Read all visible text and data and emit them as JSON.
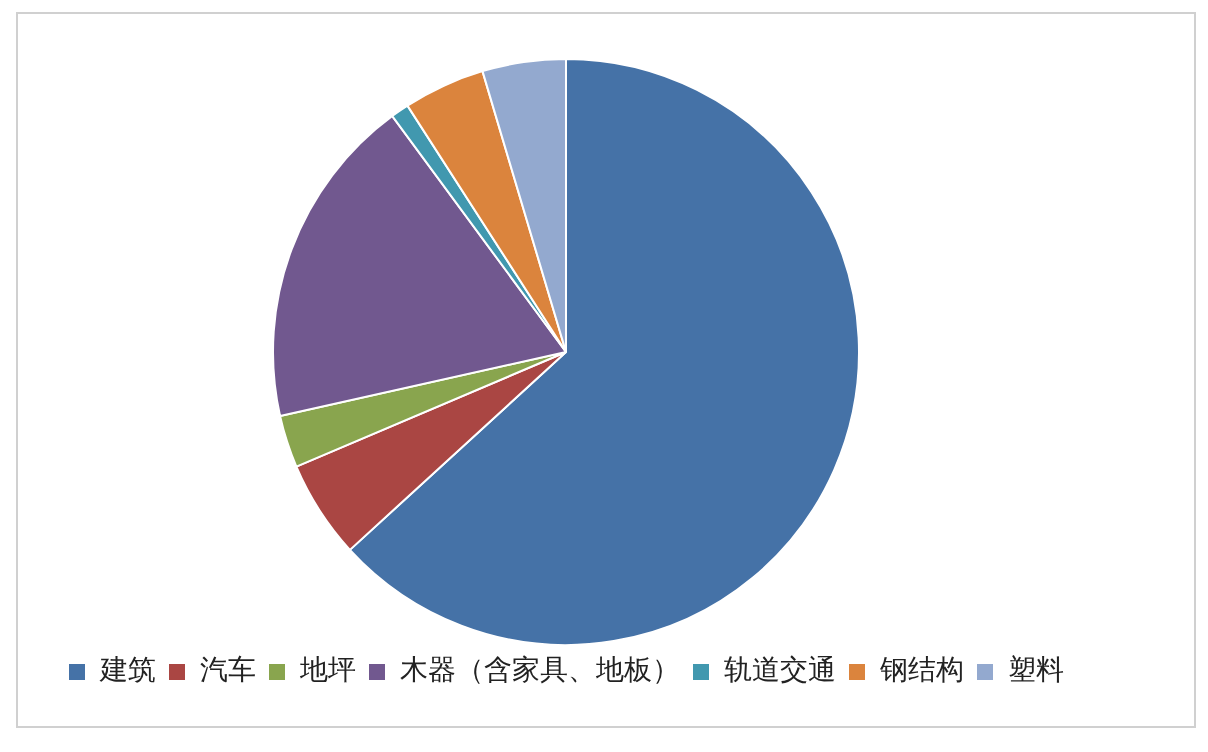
{
  "chart_data": {
    "type": "pie",
    "categories": [
      "建筑",
      "汽车",
      "地坪",
      "木器（含家具、地板）",
      "轨道交通",
      "钢结构",
      "塑料"
    ],
    "values": [
      63.2,
      5.4,
      2.9,
      18.4,
      1,
      4.5,
      4.6
    ],
    "colors": [
      "#4572a7",
      "#aa4643",
      "#89a54e",
      "#71588f",
      "#4198af",
      "#db843d",
      "#93a9cf"
    ],
    "legend": "bottom"
  }
}
